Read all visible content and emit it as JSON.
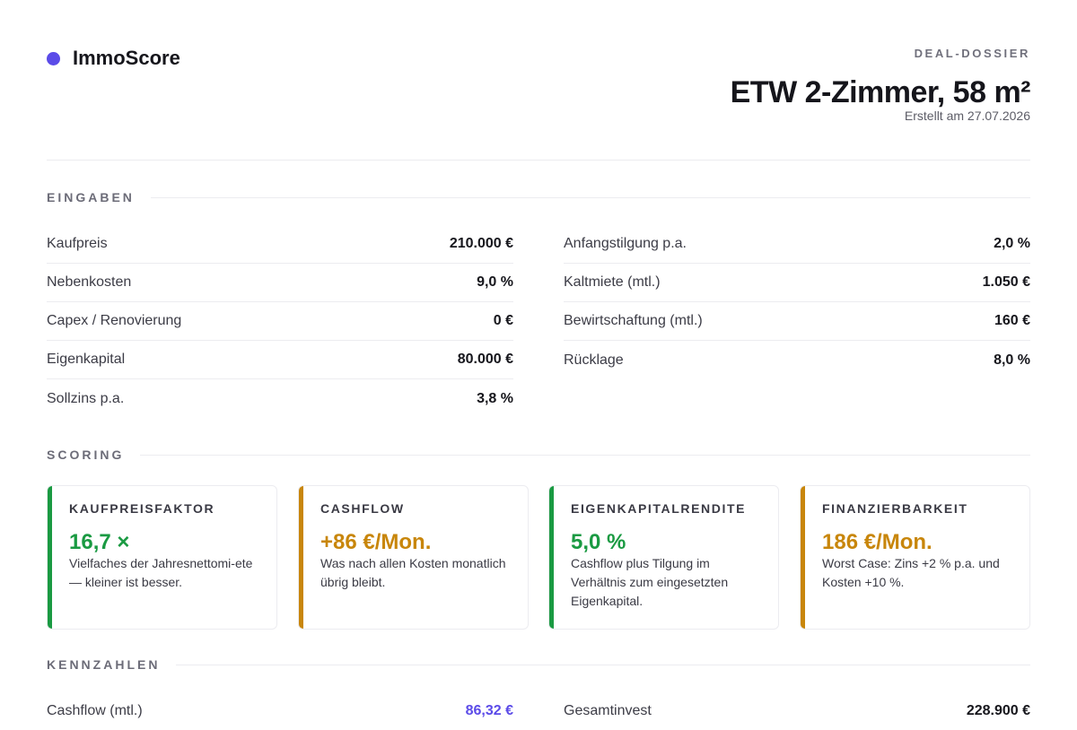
{
  "brand": {
    "name": "ImmoScore",
    "accent_color": "#5b4be8"
  },
  "header": {
    "eyebrow": "DEAL-DOSSIER",
    "title": "ETW 2-Zimmer, 58 m²",
    "created": "Erstellt am 27.07.2026"
  },
  "inputs": {
    "title": "EINGABEN",
    "left": [
      {
        "label": "Kaufpreis",
        "value": "210.000 €"
      },
      {
        "label": "Nebenkosten",
        "value": "9,0 %"
      },
      {
        "label": "Capex / Renovierung",
        "value": "0 €"
      },
      {
        "label": "Eigenkapital",
        "value": "80.000 €"
      },
      {
        "label": "Sollzins p.a.",
        "value": "3,8 %"
      }
    ],
    "right": [
      {
        "label": "Anfangstilgung p.a.",
        "value": "2,0 %"
      },
      {
        "label": "Kaltmiete (mtl.)",
        "value": "1.050 €"
      },
      {
        "label": "Bewirtschaftung (mtl.)",
        "value": "160 €"
      },
      {
        "label": "Rücklage",
        "value": "8,0 %"
      }
    ]
  },
  "scoring": {
    "title": "SCORING",
    "cards": [
      {
        "label": "KAUFPREISFAKTOR",
        "value": "16,7 ×",
        "desc": "Vielfaches der Jahresnettomi-ete — kleiner ist besser.",
        "status_color": "#1a9a42"
      },
      {
        "label": "CASHFLOW",
        "value": "+86 €/Mon.",
        "desc": "Was nach allen Kosten monatlich übrig bleibt.",
        "status_color": "#c8860b"
      },
      {
        "label": "EIGENKAPITALRENDITE",
        "value": "5,0 %",
        "desc": "Cashflow plus Tilgung im Verhältnis zum eingesetzten Eigenkapital.",
        "status_color": "#1a9a42"
      },
      {
        "label": "FINANZIERBARKEIT",
        "value": "186 €/Mon.",
        "desc": "Worst Case: Zins +2 % p.a. und Kosten +10 %.",
        "status_color": "#c8860b"
      }
    ]
  },
  "kpis": {
    "title": "KENNZAHLEN",
    "left": [
      {
        "label": "Cashflow (mtl.)",
        "value": "86,32 €"
      }
    ],
    "right": [
      {
        "label": "Gesamtinvest",
        "value": "228.900 €"
      }
    ]
  }
}
